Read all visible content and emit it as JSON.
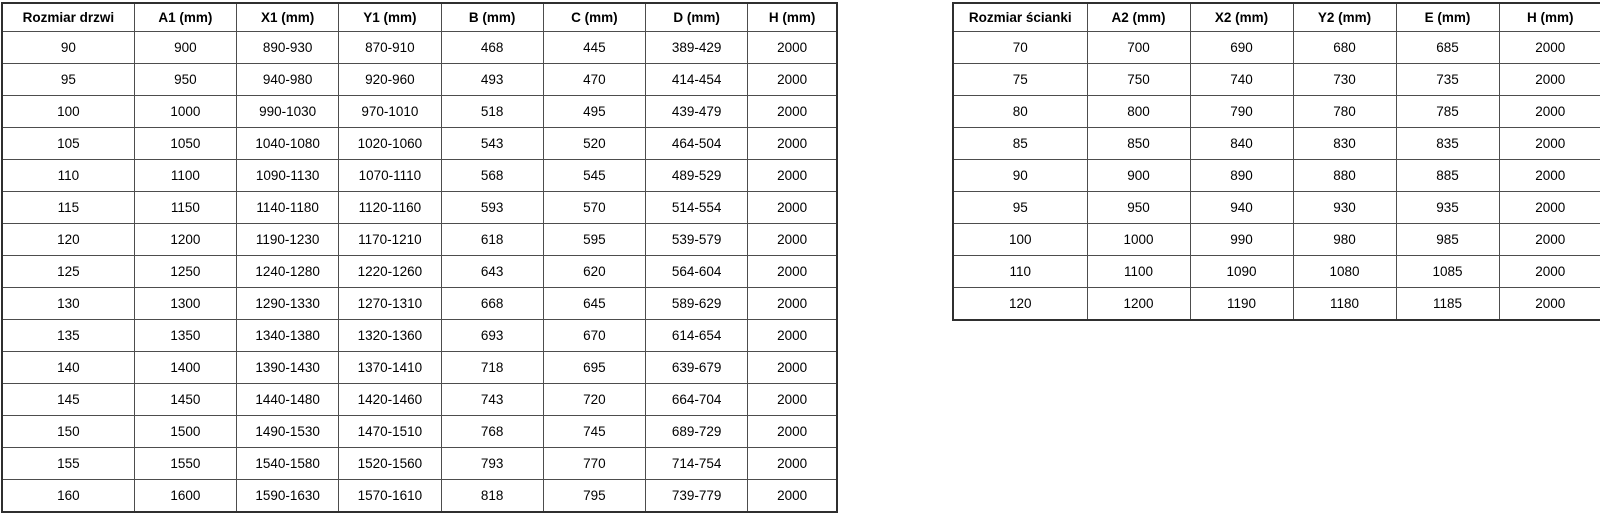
{
  "page": {
    "background_color": "#ffffff",
    "border_color_outer": "#2f2f2f",
    "border_color_inner": "#4d4d4d",
    "text_color": "#000000"
  },
  "tables": [
    {
      "name": "door-sizes-table",
      "headers": [
        "Rozmiar drzwi",
        "A1 (mm)",
        "X1 (mm)",
        "Y1 (mm)",
        "B (mm)",
        "C (mm)",
        "D (mm)",
        "H (mm)"
      ],
      "rows": [
        [
          "90",
          "900",
          "890-930",
          "870-910",
          "468",
          "445",
          "389-429",
          "2000"
        ],
        [
          "95",
          "950",
          "940-980",
          "920-960",
          "493",
          "470",
          "414-454",
          "2000"
        ],
        [
          "100",
          "1000",
          "990-1030",
          "970-1010",
          "518",
          "495",
          "439-479",
          "2000"
        ],
        [
          "105",
          "1050",
          "1040-1080",
          "1020-1060",
          "543",
          "520",
          "464-504",
          "2000"
        ],
        [
          "110",
          "1100",
          "1090-1130",
          "1070-1110",
          "568",
          "545",
          "489-529",
          "2000"
        ],
        [
          "115",
          "1150",
          "1140-1180",
          "1120-1160",
          "593",
          "570",
          "514-554",
          "2000"
        ],
        [
          "120",
          "1200",
          "1190-1230",
          "1170-1210",
          "618",
          "595",
          "539-579",
          "2000"
        ],
        [
          "125",
          "1250",
          "1240-1280",
          "1220-1260",
          "643",
          "620",
          "564-604",
          "2000"
        ],
        [
          "130",
          "1300",
          "1290-1330",
          "1270-1310",
          "668",
          "645",
          "589-629",
          "2000"
        ],
        [
          "135",
          "1350",
          "1340-1380",
          "1320-1360",
          "693",
          "670",
          "614-654",
          "2000"
        ],
        [
          "140",
          "1400",
          "1390-1430",
          "1370-1410",
          "718",
          "695",
          "639-679",
          "2000"
        ],
        [
          "145",
          "1450",
          "1440-1480",
          "1420-1460",
          "743",
          "720",
          "664-704",
          "2000"
        ],
        [
          "150",
          "1500",
          "1490-1530",
          "1470-1510",
          "768",
          "745",
          "689-729",
          "2000"
        ],
        [
          "155",
          "1550",
          "1540-1580",
          "1520-1560",
          "793",
          "770",
          "714-754",
          "2000"
        ],
        [
          "160",
          "1600",
          "1590-1630",
          "1570-1610",
          "818",
          "795",
          "739-779",
          "2000"
        ]
      ]
    },
    {
      "name": "wall-sizes-table",
      "headers": [
        "Rozmiar ścianki",
        "A2 (mm)",
        "X2 (mm)",
        "Y2 (mm)",
        "E (mm)",
        "H (mm)"
      ],
      "rows": [
        [
          "70",
          "700",
          "690",
          "680",
          "685",
          "2000"
        ],
        [
          "75",
          "750",
          "740",
          "730",
          "735",
          "2000"
        ],
        [
          "80",
          "800",
          "790",
          "780",
          "785",
          "2000"
        ],
        [
          "85",
          "850",
          "840",
          "830",
          "835",
          "2000"
        ],
        [
          "90",
          "900",
          "890",
          "880",
          "885",
          "2000"
        ],
        [
          "95",
          "950",
          "940",
          "930",
          "935",
          "2000"
        ],
        [
          "100",
          "1000",
          "990",
          "980",
          "985",
          "2000"
        ],
        [
          "110",
          "1100",
          "1090",
          "1080",
          "1085",
          "2000"
        ],
        [
          "120",
          "1200",
          "1190",
          "1180",
          "1185",
          "2000"
        ]
      ]
    }
  ]
}
